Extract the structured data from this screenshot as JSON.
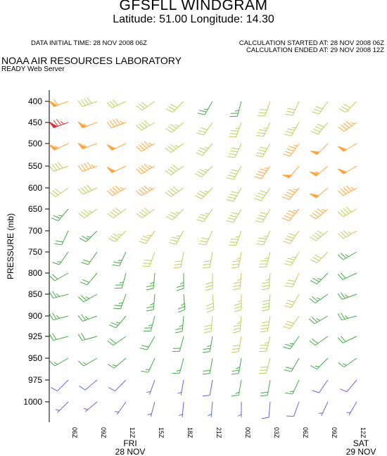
{
  "header": {
    "title": "GFSFLL WINDGRAM",
    "latlon": "Latitude: 51.00 Longitude:  14.30",
    "initial_time": "DATA INITIAL TIME: 28 NOV 2008 06Z",
    "calc_started": "CALCULATION STARTED AT: 28 NOV 2008 06Z",
    "calc_ended": "CALCULATION ENDED AT: 29 NOV 2008 12Z",
    "lab": "NOAA AIR RESOURCES LABORATORY",
    "server": "READY Web Server"
  },
  "chart_data": {
    "type": "windbarb",
    "title": "GFSFLL WINDGRAM",
    "ylabel": "PRESSURE (mb)",
    "xlabel": "",
    "y_levels": [
      400,
      450,
      500,
      550,
      600,
      650,
      700,
      750,
      800,
      850,
      900,
      925,
      950,
      975,
      1000
    ],
    "y_ticks": [
      "400",
      "450",
      "500",
      "550",
      "600",
      "650",
      "700",
      "750",
      "800",
      "850",
      "900",
      "925",
      "950",
      "975",
      "1000"
    ],
    "x_ticks": [
      "06Z",
      "09Z",
      "12Z",
      "15Z",
      "18Z",
      "21Z",
      "00Z",
      "03Z",
      "06Z",
      "09Z",
      "12Z"
    ],
    "day_labels": [
      {
        "day": "FRI",
        "date": "28 NOV",
        "at": "12Z"
      },
      {
        "day": "SAT",
        "date": "29 NOV",
        "at": "12Z"
      }
    ],
    "speed_colors": [
      {
        "max_kt": 10,
        "color": "#6666dd"
      },
      {
        "max_kt": 25,
        "color": "#44aa44"
      },
      {
        "max_kt": 40,
        "color": "#b5d35a"
      },
      {
        "max_kt": 60,
        "color": "#ffa43a"
      },
      {
        "max_kt": 999,
        "color": "#e23030"
      }
    ],
    "barb_units": "kt",
    "winds": [
      [
        [
          250,
          60
        ],
        [
          250,
          75
        ],
        [
          245,
          55
        ],
        [
          250,
          40
        ],
        [
          235,
          30
        ],
        [
          220,
          25
        ],
        [
          205,
          20
        ],
        [
          215,
          15
        ],
        [
          240,
          20
        ],
        [
          255,
          25
        ],
        [
          255,
          25
        ],
        [
          255,
          20
        ],
        [
          240,
          15
        ],
        [
          225,
          10
        ],
        [
          225,
          5
        ]
      ],
      [
        [
          250,
          40
        ],
        [
          250,
          55
        ],
        [
          250,
          55
        ],
        [
          250,
          45
        ],
        [
          245,
          40
        ],
        [
          235,
          35
        ],
        [
          225,
          25
        ],
        [
          215,
          20
        ],
        [
          220,
          20
        ],
        [
          240,
          25
        ],
        [
          250,
          25
        ],
        [
          255,
          20
        ],
        [
          240,
          15
        ],
        [
          230,
          10
        ],
        [
          230,
          5
        ]
      ],
      [
        [
          245,
          30
        ],
        [
          250,
          45
        ],
        [
          245,
          50
        ],
        [
          245,
          50
        ],
        [
          240,
          45
        ],
        [
          235,
          40
        ],
        [
          225,
          35
        ],
        [
          205,
          25
        ],
        [
          195,
          25
        ],
        [
          200,
          25
        ],
        [
          220,
          25
        ],
        [
          235,
          20
        ],
        [
          230,
          15
        ],
        [
          225,
          10
        ],
        [
          215,
          5
        ]
      ],
      [
        [
          235,
          30
        ],
        [
          240,
          40
        ],
        [
          240,
          45
        ],
        [
          240,
          45
        ],
        [
          240,
          45
        ],
        [
          235,
          40
        ],
        [
          215,
          35
        ],
        [
          200,
          30
        ],
        [
          185,
          25
        ],
        [
          185,
          25
        ],
        [
          195,
          25
        ],
        [
          210,
          20
        ],
        [
          205,
          15
        ],
        [
          200,
          5
        ],
        [
          195,
          5
        ]
      ],
      [
        [
          225,
          30
        ],
        [
          230,
          35
        ],
        [
          235,
          35
        ],
        [
          235,
          40
        ],
        [
          235,
          40
        ],
        [
          225,
          35
        ],
        [
          210,
          35
        ],
        [
          190,
          30
        ],
        [
          180,
          25
        ],
        [
          175,
          25
        ],
        [
          185,
          25
        ],
        [
          195,
          20
        ],
        [
          195,
          15
        ],
        [
          190,
          5
        ],
        [
          185,
          5
        ]
      ],
      [
        [
          210,
          25
        ],
        [
          215,
          30
        ],
        [
          220,
          35
        ],
        [
          225,
          35
        ],
        [
          225,
          35
        ],
        [
          215,
          35
        ],
        [
          205,
          30
        ],
        [
          190,
          30
        ],
        [
          180,
          30
        ],
        [
          175,
          30
        ],
        [
          185,
          30
        ],
        [
          190,
          25
        ],
        [
          190,
          20
        ],
        [
          190,
          10
        ],
        [
          185,
          5
        ]
      ],
      [
        [
          195,
          25
        ],
        [
          200,
          35
        ],
        [
          205,
          40
        ],
        [
          210,
          40
        ],
        [
          210,
          40
        ],
        [
          210,
          40
        ],
        [
          200,
          35
        ],
        [
          190,
          35
        ],
        [
          185,
          35
        ],
        [
          180,
          35
        ],
        [
          185,
          35
        ],
        [
          190,
          30
        ],
        [
          190,
          25
        ],
        [
          190,
          15
        ],
        [
          180,
          5
        ]
      ],
      [
        [
          200,
          30
        ],
        [
          205,
          35
        ],
        [
          210,
          40
        ],
        [
          215,
          45
        ],
        [
          215,
          40
        ],
        [
          210,
          40
        ],
        [
          205,
          35
        ],
        [
          195,
          35
        ],
        [
          185,
          35
        ],
        [
          185,
          40
        ],
        [
          190,
          40
        ],
        [
          195,
          35
        ],
        [
          195,
          30
        ],
        [
          190,
          20
        ],
        [
          185,
          10
        ]
      ],
      [
        [
          205,
          30
        ],
        [
          210,
          35
        ],
        [
          215,
          45
        ],
        [
          220,
          50
        ],
        [
          220,
          45
        ],
        [
          220,
          45
        ],
        [
          215,
          40
        ],
        [
          210,
          35
        ],
        [
          205,
          30
        ],
        [
          210,
          30
        ],
        [
          215,
          30
        ],
        [
          215,
          25
        ],
        [
          210,
          20
        ],
        [
          205,
          15
        ],
        [
          200,
          10
        ]
      ],
      [
        [
          215,
          30
        ],
        [
          220,
          40
        ],
        [
          225,
          50
        ],
        [
          230,
          55
        ],
        [
          230,
          50
        ],
        [
          230,
          45
        ],
        [
          230,
          40
        ],
        [
          225,
          30
        ],
        [
          225,
          25
        ],
        [
          235,
          25
        ],
        [
          240,
          25
        ],
        [
          235,
          20
        ],
        [
          225,
          15
        ],
        [
          215,
          10
        ],
        [
          205,
          5
        ]
      ],
      [
        [
          225,
          30
        ],
        [
          235,
          45
        ],
        [
          240,
          50
        ],
        [
          240,
          50
        ],
        [
          240,
          45
        ],
        [
          240,
          40
        ],
        [
          240,
          35
        ],
        [
          240,
          25
        ],
        [
          245,
          20
        ],
        [
          250,
          25
        ],
        [
          255,
          25
        ],
        [
          245,
          20
        ],
        [
          235,
          15
        ],
        [
          220,
          10
        ],
        [
          210,
          5
        ]
      ]
    ]
  }
}
